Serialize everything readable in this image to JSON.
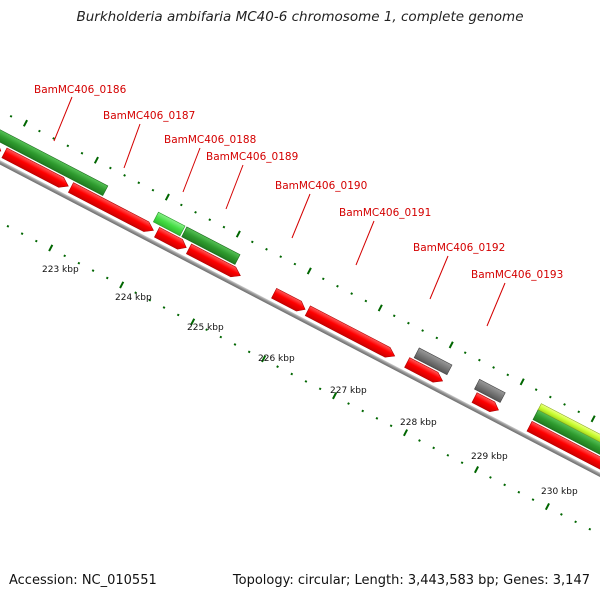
{
  "title": "Burkholderia ambifaria MC40-6 chromosome 1, complete genome",
  "footer": {
    "accession": "Accession: NC_010551",
    "topology": "Topology: circular; Length: 3,443,583 bp; Genes: 3,147"
  },
  "scale_ticks": [
    {
      "kbp": 223,
      "label": "223 kbp"
    },
    {
      "kbp": 224,
      "label": "224 kbp"
    },
    {
      "kbp": 225,
      "label": "225 kbp"
    },
    {
      "kbp": 226,
      "label": "226 kbp"
    },
    {
      "kbp": 227,
      "label": "227 kbp"
    },
    {
      "kbp": 228,
      "label": "228 kbp"
    },
    {
      "kbp": 229,
      "label": "229 kbp"
    },
    {
      "kbp": 230,
      "label": "230 kbp"
    }
  ],
  "gene_labels": [
    {
      "id": "BamMC406_0186",
      "label": "BamMC406_0186"
    },
    {
      "id": "BamMC406_0187",
      "label": "BamMC406_0187"
    },
    {
      "id": "BamMC406_0188",
      "label": "BamMC406_0188"
    },
    {
      "id": "BamMC406_0189",
      "label": "BamMC406_0189"
    },
    {
      "id": "BamMC406_0190",
      "label": "BamMC406_0190"
    },
    {
      "id": "BamMC406_0191",
      "label": "BamMC406_0191"
    },
    {
      "id": "BamMC406_0192",
      "label": "BamMC406_0192"
    },
    {
      "id": "BamMC406_0193",
      "label": "BamMC406_0193"
    }
  ],
  "colors": {
    "cds": "#ff0000",
    "cds_edge": "#b00000",
    "gene_dark_green": "#2e9a2e",
    "gene_light_green": "#44dd44",
    "gene_lime": "#ccff33",
    "pseudo_grey": "#777777",
    "backbone": "#999999",
    "tick": "#006600",
    "label": "#d40000"
  }
}
